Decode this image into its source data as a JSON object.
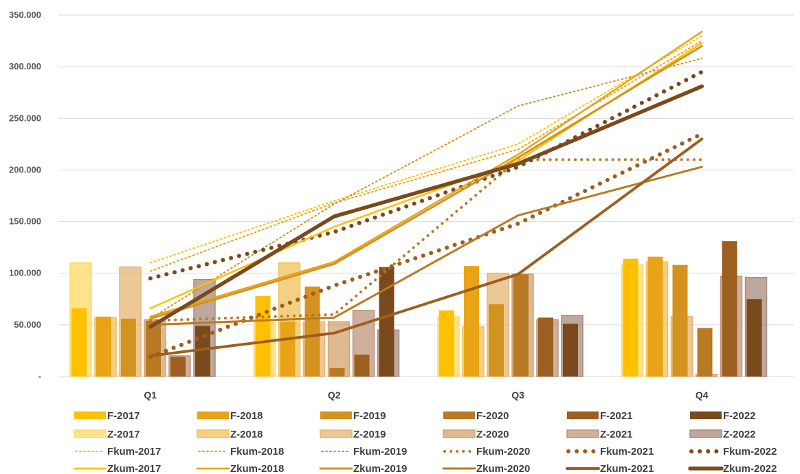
{
  "chart_data": {
    "type": "bar",
    "categories": [
      "Q1",
      "Q2",
      "Q3",
      "Q4"
    ],
    "ylim": [
      0,
      350000
    ],
    "yticks": [
      0,
      50000,
      100000,
      150000,
      200000,
      250000,
      300000,
      350000
    ],
    "ytick_labels": [
      "-",
      "50.000",
      "100.000",
      "150.000",
      "200.000",
      "250.000",
      "300.000",
      "350.000"
    ],
    "grid": true,
    "legend_position": "bottom",
    "bar_series": [
      {
        "name": "F-2017",
        "kind": "F",
        "color": "#FFC000",
        "values": [
          66000,
          78000,
          64000,
          114000
        ]
      },
      {
        "name": "F-2018",
        "kind": "F",
        "color": "#E8A317",
        "values": [
          58000,
          53000,
          107000,
          116000
        ]
      },
      {
        "name": "F-2019",
        "kind": "F",
        "color": "#D4921E",
        "values": [
          56000,
          87000,
          70000,
          108000
        ]
      },
      {
        "name": "F-2020",
        "kind": "F",
        "color": "#B87A23",
        "values": [
          54000,
          8000,
          99000,
          47000
        ]
      },
      {
        "name": "F-2021",
        "kind": "F",
        "color": "#9C5F20",
        "values": [
          19000,
          21000,
          57000,
          131000
        ]
      },
      {
        "name": "F-2022",
        "kind": "F",
        "color": "#7A4A1C",
        "values": [
          49000,
          106000,
          51000,
          75000
        ]
      },
      {
        "name": "Z-2017",
        "kind": "Z",
        "color": "#FFD966",
        "values": [
          110000,
          52000,
          58000,
          108000
        ]
      },
      {
        "name": "Z-2018",
        "kind": "Z",
        "color": "#F0C05A",
        "values": [
          57000,
          110000,
          48000,
          111000
        ]
      },
      {
        "name": "Z-2019",
        "kind": "Z",
        "color": "#E5B574",
        "values": [
          106000,
          53000,
          100000,
          58000
        ]
      },
      {
        "name": "Z-2020",
        "kind": "Z",
        "color": "#D3A26C",
        "values": [
          55000,
          53000,
          99000,
          2000
        ]
      },
      {
        "name": "Z-2021",
        "kind": "Z",
        "color": "#BE967C",
        "values": [
          20000,
          64000,
          55000,
          97000
        ]
      },
      {
        "name": "Z-2022",
        "kind": "Z",
        "color": "#A88B7C",
        "values": [
          94000,
          45000,
          59000,
          96000
        ]
      }
    ],
    "line_series": [
      {
        "name": "Fkum-2017",
        "kind": "Fkum",
        "color": "#FFC000",
        "values": [
          110000,
          170000,
          225000,
          330000
        ]
      },
      {
        "name": "Fkum-2018",
        "kind": "Fkum",
        "color": "#E8A317",
        "values": [
          102000,
          168000,
          220000,
          325000
        ]
      },
      {
        "name": "Fkum-2019",
        "kind": "Fkum",
        "color": "#D4921E",
        "values": [
          56000,
          167000,
          262000,
          308000
        ]
      },
      {
        "name": "Fkum-2020",
        "kind": "Fkum",
        "color": "#B87A23",
        "values": [
          54000,
          60000,
          210000,
          210000
        ]
      },
      {
        "name": "Fkum-2021",
        "kind": "Fkum",
        "color": "#9C5F20",
        "values": [
          19000,
          88000,
          148000,
          235000
        ]
      },
      {
        "name": "Fkum-2022",
        "kind": "Fkum",
        "color": "#7A4A1C",
        "values": [
          95000,
          140000,
          203000,
          295000
        ]
      },
      {
        "name": "Zkum-2017",
        "kind": "Zkum",
        "color": "#FFC000",
        "values": [
          66000,
          145000,
          209000,
          323000
        ]
      },
      {
        "name": "Zkum-2018",
        "kind": "Zkum",
        "color": "#E8A317",
        "values": [
          58000,
          111000,
          215000,
          334000
        ]
      },
      {
        "name": "Zkum-2019",
        "kind": "Zkum",
        "color": "#D4921E",
        "values": [
          56000,
          109000,
          212000,
          320000
        ]
      },
      {
        "name": "Zkum-2020",
        "kind": "Zkum",
        "color": "#B87A23",
        "values": [
          50000,
          57000,
          156000,
          203000
        ]
      },
      {
        "name": "Zkum-2021",
        "kind": "Zkum",
        "color": "#9C5F20",
        "values": [
          20000,
          42000,
          99000,
          230000
        ]
      },
      {
        "name": "Zkum-2022",
        "kind": "Zkum",
        "color": "#7A4A1C",
        "values": [
          48000,
          155000,
          206000,
          281000
        ]
      }
    ],
    "legend_order": [
      "F-2017",
      "F-2018",
      "F-2019",
      "F-2020",
      "F-2021",
      "F-2022",
      "Z-2017",
      "Z-2018",
      "Z-2019",
      "Z-2020",
      "Z-2021",
      "Z-2022",
      "Fkum-2017",
      "Fkum-2018",
      "Fkum-2019",
      "Fkum-2020",
      "Fkum-2021",
      "Fkum-2022",
      "Zkum-2017",
      "Zkum-2018",
      "Zkum-2019",
      "Zkum-2020",
      "Zkum-2021",
      "Zkum-2022"
    ]
  }
}
